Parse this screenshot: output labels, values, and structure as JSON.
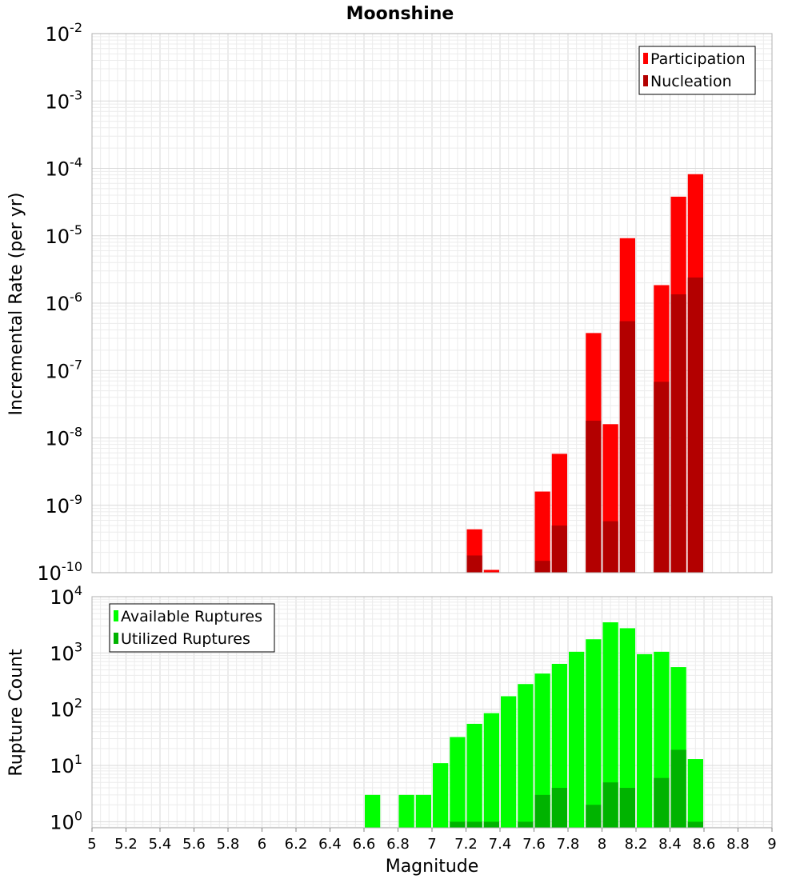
{
  "title": "Moonshine",
  "xlabel": "Magnitude",
  "x_ticks": [
    "5",
    "5.2",
    "5.4",
    "5.6",
    "5.8",
    "6",
    "6.2",
    "6.4",
    "6.6",
    "6.8",
    "7",
    "7.2",
    "7.4",
    "7.6",
    "7.8",
    "8",
    "8.2",
    "8.4",
    "8.6",
    "8.8",
    "9"
  ],
  "chart_data": [
    {
      "type": "bar",
      "title": "Moonshine",
      "xlabel": "",
      "ylabel": "Incremental Rate (per yr)",
      "xlim": [
        5,
        9
      ],
      "ylim": [
        1e-10,
        0.01
      ],
      "yscale": "log",
      "bin_width": 0.1,
      "grid": true,
      "legend": "top-right",
      "y_ticks": [
        {
          "base": "10",
          "exp": "-10"
        },
        {
          "base": "10",
          "exp": "-9"
        },
        {
          "base": "10",
          "exp": "-8"
        },
        {
          "base": "10",
          "exp": "-7"
        },
        {
          "base": "10",
          "exp": "-6"
        },
        {
          "base": "10",
          "exp": "-5"
        },
        {
          "base": "10",
          "exp": "-4"
        },
        {
          "base": "10",
          "exp": "-3"
        },
        {
          "base": "10",
          "exp": "-2"
        }
      ],
      "x": [
        7.25,
        7.35,
        7.65,
        7.75,
        7.95,
        8.05,
        8.15,
        8.35,
        8.45,
        8.55
      ],
      "series": [
        {
          "name": "Participation",
          "color": "#ff0000",
          "values": [
            4.4e-10,
            1.1e-10,
            1.6e-09,
            5.8e-09,
            3.6e-07,
            1.6e-08,
            9.2e-06,
            1.85e-06,
            3.8e-05,
            8.2e-05
          ]
        },
        {
          "name": "Nucleation",
          "color": "#b30000",
          "values": [
            1.8e-10,
            null,
            1.5e-10,
            5e-10,
            1.8e-08,
            5.8e-10,
            5.4e-07,
            6.8e-08,
            1.35e-06,
            2.4e-06
          ]
        }
      ]
    },
    {
      "type": "bar",
      "xlabel": "Magnitude",
      "ylabel": "Rupture Count",
      "xlim": [
        5,
        9
      ],
      "ylim": [
        0.78,
        10000
      ],
      "yscale": "log",
      "bin_width": 0.1,
      "grid": true,
      "legend": "top-left",
      "y_ticks": [
        {
          "base": "10",
          "exp": "0"
        },
        {
          "base": "10",
          "exp": "1"
        },
        {
          "base": "10",
          "exp": "2"
        },
        {
          "base": "10",
          "exp": "3"
        },
        {
          "base": "10",
          "exp": "4"
        }
      ],
      "x": [
        6.65,
        6.85,
        6.95,
        7.05,
        7.15,
        7.25,
        7.35,
        7.45,
        7.55,
        7.65,
        7.75,
        7.85,
        7.95,
        8.05,
        8.15,
        8.25,
        8.35,
        8.45,
        8.55
      ],
      "series": [
        {
          "name": "Available Ruptures",
          "color": "#00ff00",
          "values": [
            3,
            3,
            3,
            11,
            32,
            55,
            85,
            170,
            280,
            430,
            640,
            1050,
            1750,
            3500,
            2750,
            950,
            1050,
            560,
            13
          ]
        },
        {
          "name": "Utilized Ruptures",
          "color": "#00b300",
          "values": [
            null,
            null,
            null,
            null,
            1,
            1,
            1,
            null,
            1,
            3,
            4,
            null,
            2,
            5,
            4,
            null,
            6,
            19,
            1
          ]
        }
      ]
    }
  ]
}
